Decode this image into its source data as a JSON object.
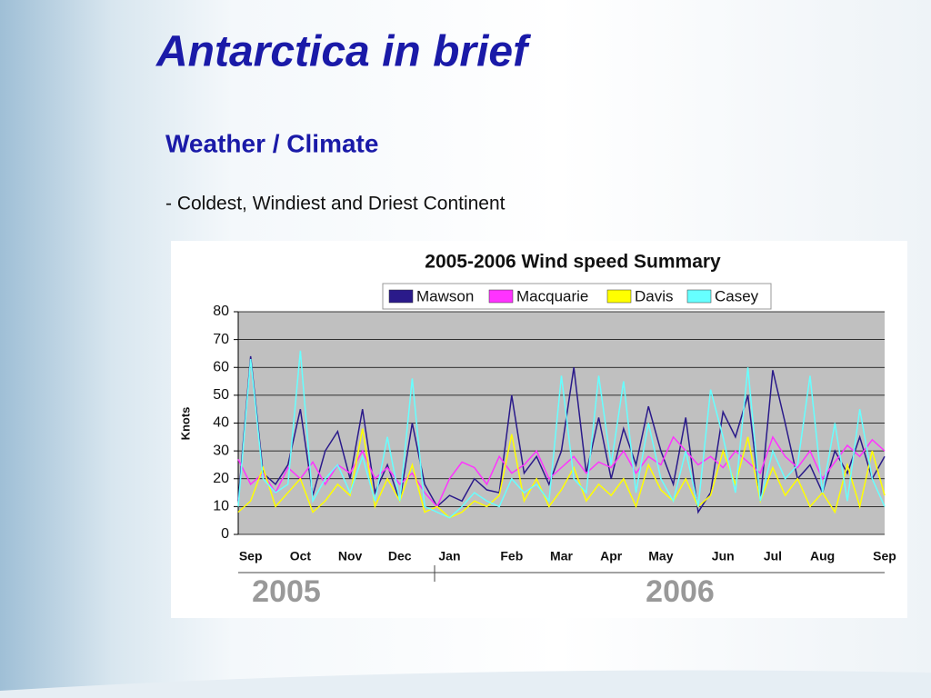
{
  "slide": {
    "title": "Antarctica in brief",
    "heading": "Weather / Climate",
    "bullet": "- Coldest, Windiest and Driest Continent"
  },
  "chart_data": {
    "type": "line",
    "title": "2005-2006 Wind speed Summary",
    "y_label": "Knots",
    "categories": [
      null,
      "Sep",
      null,
      null,
      null,
      "Oct",
      null,
      null,
      null,
      "Nov",
      null,
      null,
      null,
      "Dec",
      null,
      null,
      null,
      "Jan",
      null,
      null,
      null,
      null,
      "Feb",
      null,
      null,
      null,
      "Mar",
      null,
      null,
      null,
      "Apr",
      null,
      null,
      null,
      "May",
      null,
      null,
      null,
      null,
      "Jun",
      null,
      null,
      null,
      "Jul",
      null,
      null,
      null,
      "Aug",
      null,
      null,
      null,
      null,
      "Sep"
    ],
    "annotations": [
      "2005",
      "2006"
    ],
    "ylim": [
      0,
      80
    ],
    "yticks": [
      0,
      10,
      20,
      30,
      40,
      50,
      60,
      70,
      80
    ],
    "grid": true,
    "legend": "top",
    "series": [
      {
        "name": "Mawson",
        "color": "#2a1a8a",
        "values": [
          12,
          64,
          22,
          18,
          25,
          45,
          14,
          30,
          37,
          20,
          45,
          15,
          25,
          12,
          40,
          18,
          10,
          14,
          12,
          20,
          16,
          15,
          50,
          22,
          28,
          18,
          30,
          60,
          22,
          42,
          20,
          38,
          25,
          46,
          30,
          18,
          42,
          8,
          15,
          44,
          35,
          50,
          12,
          59,
          40,
          20,
          25,
          15,
          30,
          22,
          35,
          20,
          28
        ]
      },
      {
        "name": "Macquarie",
        "color": "#ff33ff",
        "values": [
          27,
          18,
          22,
          15,
          24,
          20,
          26,
          18,
          25,
          22,
          30,
          20,
          24,
          18,
          22,
          15,
          10,
          20,
          26,
          24,
          18,
          28,
          22,
          25,
          30,
          20,
          24,
          28,
          22,
          26,
          24,
          30,
          22,
          28,
          25,
          35,
          30,
          25,
          28,
          24,
          30,
          26,
          22,
          35,
          28,
          24,
          30,
          20,
          26,
          32,
          28,
          34,
          30
        ]
      },
      {
        "name": "Davis",
        "color": "#ffff00",
        "values": [
          8,
          12,
          24,
          10,
          15,
          20,
          8,
          12,
          18,
          14,
          38,
          10,
          20,
          12,
          25,
          8,
          10,
          6,
          8,
          12,
          10,
          14,
          36,
          12,
          20,
          10,
          16,
          24,
          12,
          18,
          14,
          20,
          10,
          25,
          16,
          12,
          20,
          10,
          14,
          30,
          18,
          35,
          12,
          24,
          14,
          20,
          10,
          15,
          8,
          25,
          10,
          30,
          14
        ]
      },
      {
        "name": "Casey",
        "color": "#66ffff",
        "values": [
          10,
          63,
          20,
          15,
          18,
          66,
          12,
          20,
          25,
          15,
          28,
          12,
          35,
          12,
          56,
          10,
          8,
          6,
          10,
          15,
          12,
          10,
          20,
          15,
          18,
          12,
          57,
          20,
          15,
          57,
          25,
          55,
          15,
          40,
          20,
          12,
          30,
          10,
          52,
          35,
          15,
          60,
          12,
          30,
          20,
          25,
          57,
          15,
          40,
          12,
          45,
          20,
          10
        ]
      }
    ]
  }
}
